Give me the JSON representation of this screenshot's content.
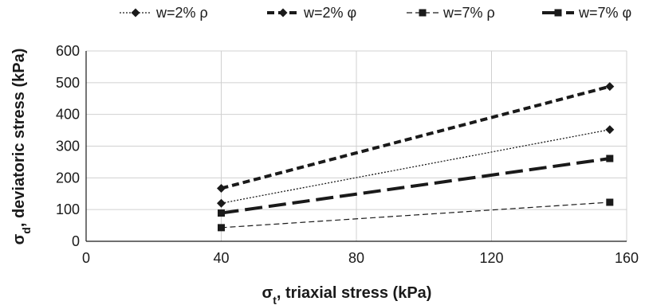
{
  "chart_data": {
    "type": "line",
    "title": "",
    "xlabel": "σt, triaxial stress (kPa)",
    "ylabel": "σd, deviatoric stress (kPa)",
    "xlim": [
      0,
      160
    ],
    "ylim": [
      0,
      600
    ],
    "xticks": [
      0,
      40,
      80,
      120,
      160
    ],
    "yticks": [
      0,
      100,
      200,
      300,
      400,
      500,
      600
    ],
    "grid": true,
    "legend_position": "top",
    "series": [
      {
        "name": "w=2% ρ",
        "marker": "diamond",
        "line": "dotted-thin",
        "color": "#1a1a1a",
        "points": [
          {
            "x": 40,
            "y": 120
          },
          {
            "x": 155,
            "y": 352
          }
        ]
      },
      {
        "name": "w=2% φ",
        "marker": "diamond",
        "line": "dashed-thick",
        "color": "#1a1a1a",
        "points": [
          {
            "x": 40,
            "y": 167
          },
          {
            "x": 155,
            "y": 488
          }
        ]
      },
      {
        "name": "w=7% ρ",
        "marker": "square",
        "line": "dashed-thin",
        "color": "#1a1a1a",
        "points": [
          {
            "x": 40,
            "y": 43
          },
          {
            "x": 155,
            "y": 123
          }
        ]
      },
      {
        "name": "w=7% φ",
        "marker": "square",
        "line": "longdash-thick",
        "color": "#1a1a1a",
        "points": [
          {
            "x": 40,
            "y": 89
          },
          {
            "x": 155,
            "y": 261
          }
        ]
      }
    ]
  }
}
